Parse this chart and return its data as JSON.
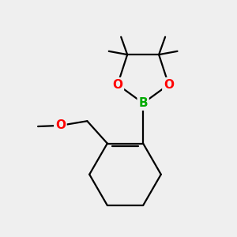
{
  "background_color": "#efefef",
  "bond_color": "#000000",
  "B_color": "#00aa00",
  "O_color": "#ff0000",
  "bond_width": 1.6,
  "font_size_atom": 11,
  "xlim": [
    -2.2,
    2.2
  ],
  "ylim": [
    -2.8,
    2.4
  ],
  "figsize": [
    3.0,
    3.0
  ],
  "dpi": 100
}
